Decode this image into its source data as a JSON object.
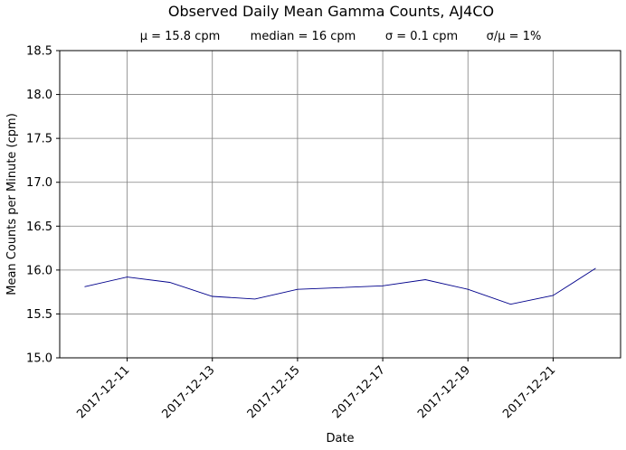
{
  "chart_data": {
    "type": "line",
    "title": "Observed Daily Mean Gamma Counts, AJ4CO",
    "subtitle_parts": [
      "μ = 15.8 cpm",
      "median = 16 cpm",
      "σ = 0.1 cpm",
      "σ/μ = 1%"
    ],
    "xlabel": "Date",
    "ylabel": "Mean Counts per Minute (cpm)",
    "x": [
      "2017-12-10",
      "2017-12-11",
      "2017-12-12",
      "2017-12-13",
      "2017-12-14",
      "2017-12-15",
      "2017-12-16",
      "2017-12-17",
      "2017-12-18",
      "2017-12-19",
      "2017-12-20",
      "2017-12-21",
      "2017-12-22"
    ],
    "y": [
      15.81,
      15.92,
      15.86,
      15.7,
      15.67,
      15.78,
      15.8,
      15.82,
      15.89,
      15.78,
      15.61,
      15.71,
      16.02
    ],
    "xlim": [
      "2017-12-09T10:00",
      "2017-12-22T14:00"
    ],
    "ylim": [
      15.0,
      18.5
    ],
    "xticks": [
      "2017-12-11",
      "2017-12-13",
      "2017-12-15",
      "2017-12-17",
      "2017-12-19",
      "2017-12-21"
    ],
    "yticks": [
      15.0,
      15.5,
      16.0,
      16.5,
      17.0,
      17.5,
      18.0,
      18.5
    ],
    "ytick_labels": [
      "15.0",
      "15.5",
      "16.0",
      "16.5",
      "17.0",
      "17.5",
      "18.0",
      "18.5"
    ],
    "grid": true,
    "line_color": "#00008b",
    "grid_color": "#808080"
  }
}
